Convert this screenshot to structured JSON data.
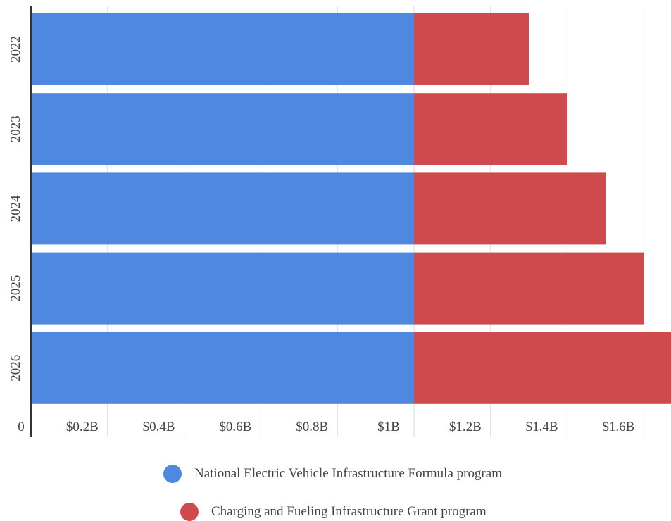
{
  "chart_data": {
    "type": "bar",
    "orientation": "horizontal",
    "stacked": true,
    "categories": [
      "2022",
      "2023",
      "2024",
      "2025",
      "2026"
    ],
    "series": [
      {
        "name": "National Electric Vehicle Infrastructure Formula program",
        "color": "#4E88E0",
        "values": [
          1.0,
          1.0,
          1.0,
          1.0,
          1.0
        ]
      },
      {
        "name": "Charging and Fueling Infrastructure Grant program",
        "color": "#CF4A4C",
        "values": [
          0.3,
          0.4,
          0.5,
          0.6,
          0.7
        ]
      }
    ],
    "x_ticks": [
      "0",
      "$0.2B",
      "$0.4B",
      "$0.6B",
      "$0.8B",
      "$1B",
      "$1.2B",
      "$1.4B",
      "$1.6B"
    ],
    "x_tick_values": [
      0,
      0.2,
      0.4,
      0.6,
      0.8,
      1.0,
      1.2,
      1.4,
      1.6
    ],
    "xlim": [
      0,
      1.7
    ],
    "grid": true,
    "legend_position": "bottom",
    "title": "",
    "xlabel": "",
    "ylabel": ""
  }
}
